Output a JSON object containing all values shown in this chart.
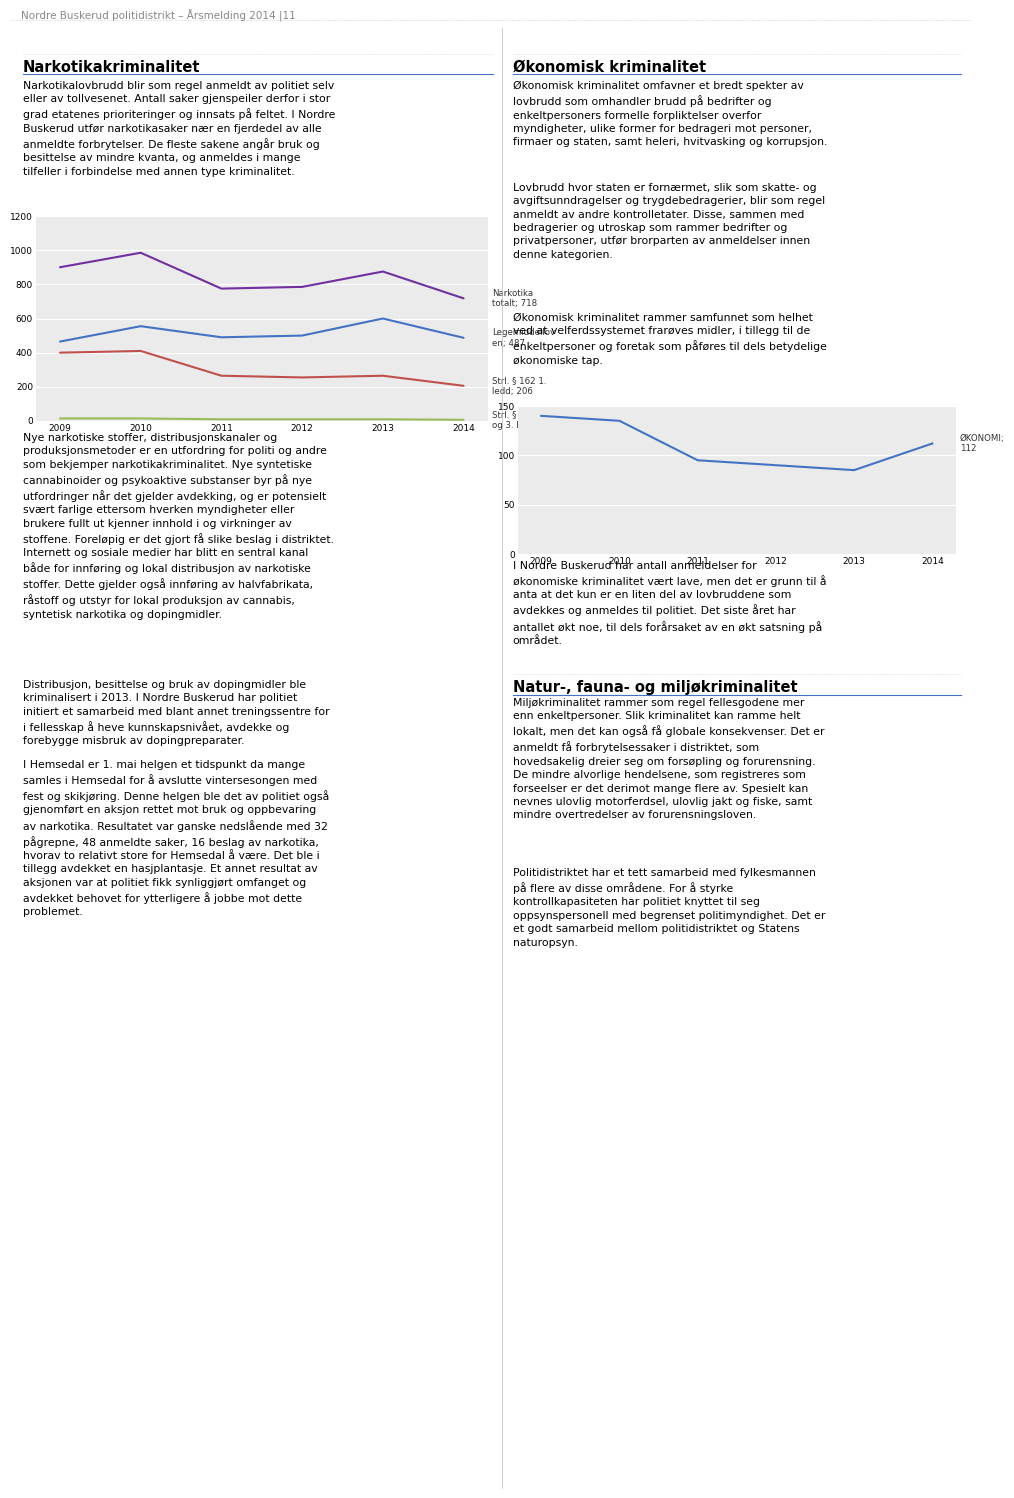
{
  "left_chart": {
    "years": [
      2009,
      2010,
      2011,
      2012,
      2013,
      2014
    ],
    "series": [
      {
        "label": "Narkotika\ntotalt; 718",
        "color": "#7030A0",
        "values": [
          900,
          985,
          775,
          785,
          875,
          718
        ]
      },
      {
        "label": "Legemiddellov\nen; 487",
        "color": "#4472C4",
        "values": [
          465,
          555,
          490,
          500,
          600,
          487
        ]
      },
      {
        "label": "Strl. § 162 1.\nledd; 206",
        "color": "#C0504D",
        "values": [
          400,
          410,
          265,
          255,
          265,
          206
        ]
      },
      {
        "label": "Strl. § 162 2.\nog 3. ledd; 7",
        "color": "#9BBB59",
        "values": [
          15,
          15,
          10,
          10,
          10,
          7
        ]
      }
    ],
    "ylim": [
      0,
      1200
    ],
    "yticks": [
      0,
      200,
      400,
      600,
      800,
      1000,
      1200
    ]
  },
  "right_chart": {
    "years": [
      2009,
      2010,
      2011,
      2012,
      2013,
      2014
    ],
    "series": [
      {
        "label": "ØKONOMI;\n112",
        "color": "#4472C4",
        "values": [
          140,
          135,
          95,
          90,
          85,
          112
        ]
      }
    ],
    "ylim": [
      0,
      150
    ],
    "yticks": [
      0,
      50,
      100,
      150
    ]
  },
  "page_title": "Nordre Buskerud politidistrikt – Årsmelding 2014 |11",
  "left_title": "Narkotikakriminalitet",
  "right_title": "Økonomisk kriminalitet",
  "left_text_1": "Narkotikalovbrudd blir som regel anmeldt av politiet selv\neller av tollvesenet. Antall saker gjenspeiler derfor i stor\ngrad etatenes prioriteringer og innsats på feltet. I Nordre\nBuskerud utfør narkotikasaker nær en fjerdedel av alle\nanmeldte forbrytelser. De fleste sakene angår bruk og\nbesittelse av mindre kvanta, og anmeldes i mange\ntilfeller i forbindelse med annen type kriminalitet.",
  "right_text_1": "Økonomisk kriminalitet omfavner et bredt spekter av\nlovbrudd som omhandler brudd på bedrifter og\nenkeltpersoners formelle forpliktelser overfor\nmyndigheter, ulike former for bedrageri mot personer,\nfirmaer og staten, samt heleri, hvitvasking og korrupsjon.",
  "right_text_2": "Lovbrudd hvor staten er fornærmet, slik som skatte- og\navgiftsunndragelser og trygdebedragerier, blir som regel\nanmeldt av andre kontrolletater. Disse, sammen med\nbedragerier og utroskap som rammer bedrifter og\nprivatpersoner, utfør brorparten av anmeldelser innen\ndenne kategorien.",
  "right_text_3": "Økonomisk kriminalitet rammer samfunnet som helhet\nved at velferdssystemet frarøves midler, i tillegg til de\nenkeltpersoner og foretak som påføres til dels betydelige\nøkonomiske tap.",
  "left_text_2": "Nye narkotiske stoffer, distribusjonskanaler og\nproduksjonsmetoder er en utfordring for politi og andre\nsom bekjemper narkotikakriminalitet. Nye syntetiske\ncannabinoider og psykoaktive substanser byr på nye\nutfordringer når det gjelder avdekking, og er potensielt\nsvært farlige ettersom hverken myndigheter eller\nbrukere fullt ut kjenner innhold i og virkninger av\nstoffene. Foreløpig er det gjort få slike beslag i distriktet.\nInternett og sosiale medier har blitt en sentral kanal\nbåde for innføring og lokal distribusjon av narkotiske\nstoffer. Dette gjelder også innføring av halvfabrikata,\nråstoff og utstyr for lokal produksjon av cannabis,\nsyntetisk narkotika og dopingmidler.",
  "left_text_3": "Distribusjon, besittelse og bruk av dopingmidler ble\nkriminalisert i 2013. I Nordre Buskerud har politiet\ninitiert et samarbeid med blant annet treningssentre for\ni fellesskap å heve kunnskapsnivået, avdekke og\nforebygge misbruk av dopingpreparater.",
  "left_text_4": "I Hemsedal er 1. mai helgen et tidspunkt da mange\nsamles i Hemsedal for å avslutte vintersesongen med\nfest og skikjøring. Denne helgen ble det av politiet også\ngjenomført en aksjon rettet mot bruk og oppbevaring\nav narkotika. Resultatet var ganske nedslående med 32\npågrepne, 48 anmeldte saker, 16 beslag av narkotika,\nhvorav to relativt store for Hemsedal å være. Det ble i\ntillegg avdekket en hasjplantasje. Et annet resultat av\naksjonen var at politiet fikk synliggjørt omfanget og\navdekket behovet for ytterligere å jobbe mot dette\nproblemet.",
  "right_text_4": "I Nordre Buskerud har antall anmeldelser for\nøkonomiske kriminalitet vært lave, men det er grunn til å\nanta at det kun er en liten del av lovbruddene som\navdekkes og anmeldes til politiet. Det siste året har\nantallet økt noe, til dels forårsaket av en økt satsning på\nområdet.",
  "natur_title": "Natur-, fauna- og miljøkriminalitet",
  "natur_text_1": "Miljøkriminalitet rammer som regel fellesgodene mer\nenn enkeltpersoner. Slik kriminalitet kan ramme helt\nlokalt, men det kan også få globale konsekvenser. Det er\nanmeldt få forbrytelsessaker i distriktet, som\nhovedsakelig dreier seg om forsøpling og forurensning.\nDe mindre alvorlige hendelsene, som registreres som\nforseelser er det derimot mange flere av. Spesielt kan\nnevnes ulovlig motorferdsel, ulovlig jakt og fiske, samt\nmindre overtredelser av forurensningsloven.",
  "natur_text_2": "Politidistriktet har et tett samarbeid med fylkesmannen\npå flere av disse områdene. For å styrke\nkontrollkapasiteten har politiet knyttet til seg\noppsynspersonell med begrenset politimyndighet. Det er\net godt samarbeid mellom politidistriktet og Statens\nnaturopsyn.",
  "background_color": "#FFFFFF",
  "chart_bg_color": "#EBEBEB",
  "grid_color": "#FFFFFF",
  "text_color": "#000000",
  "header_color": "#888888",
  "section_line_color": "#4472C4",
  "divider_color": "#BBBBBB",
  "top_line_color": "#AAAAAA"
}
